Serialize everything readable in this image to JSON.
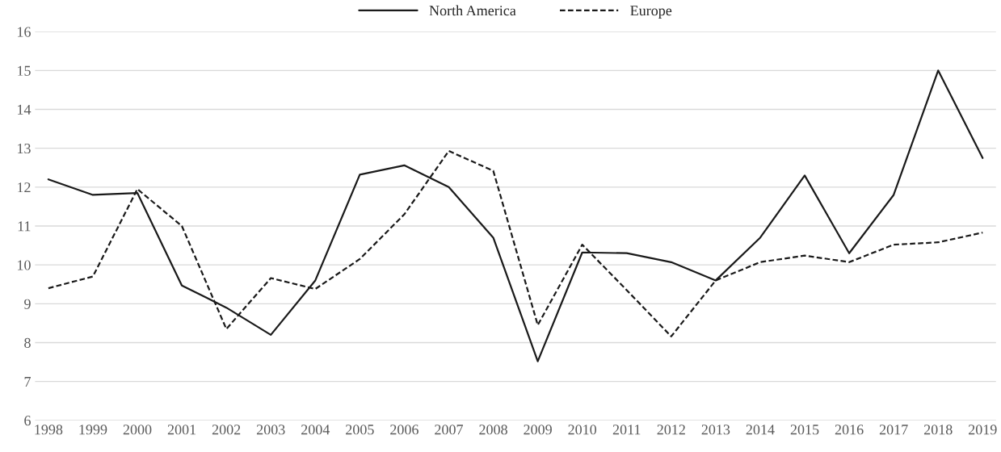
{
  "chart_data": {
    "type": "line",
    "categories": [
      "1998",
      "1999",
      "2000",
      "2001",
      "2002",
      "2003",
      "2004",
      "2005",
      "2006",
      "2007",
      "2008",
      "2009",
      "2010",
      "2011",
      "2012",
      "2013",
      "2014",
      "2015",
      "2016",
      "2017",
      "2018",
      "2019"
    ],
    "series": [
      {
        "name": "North America",
        "color": "#1a1a1a",
        "line_style": "solid",
        "values": [
          12.2,
          11.8,
          11.85,
          9.47,
          8.9,
          8.2,
          9.6,
          12.32,
          12.56,
          12.0,
          10.7,
          7.52,
          10.32,
          10.3,
          10.07,
          9.6,
          10.7,
          12.3,
          10.3,
          11.8,
          15.0,
          12.75
        ]
      },
      {
        "name": "Europe",
        "color": "#1a1a1a",
        "line_style": "dashed",
        "values": [
          9.4,
          9.7,
          11.95,
          11.0,
          8.35,
          9.66,
          9.38,
          10.15,
          11.3,
          12.93,
          12.42,
          8.45,
          10.52,
          9.35,
          8.16,
          9.6,
          10.07,
          10.24,
          10.07,
          10.52,
          10.58,
          10.83
        ]
      }
    ],
    "ylim": [
      6,
      16
    ],
    "yticks": [
      6,
      7,
      8,
      9,
      10,
      11,
      12,
      13,
      14,
      15,
      16
    ],
    "grid": "y",
    "legend": "top",
    "marker": "none"
  }
}
